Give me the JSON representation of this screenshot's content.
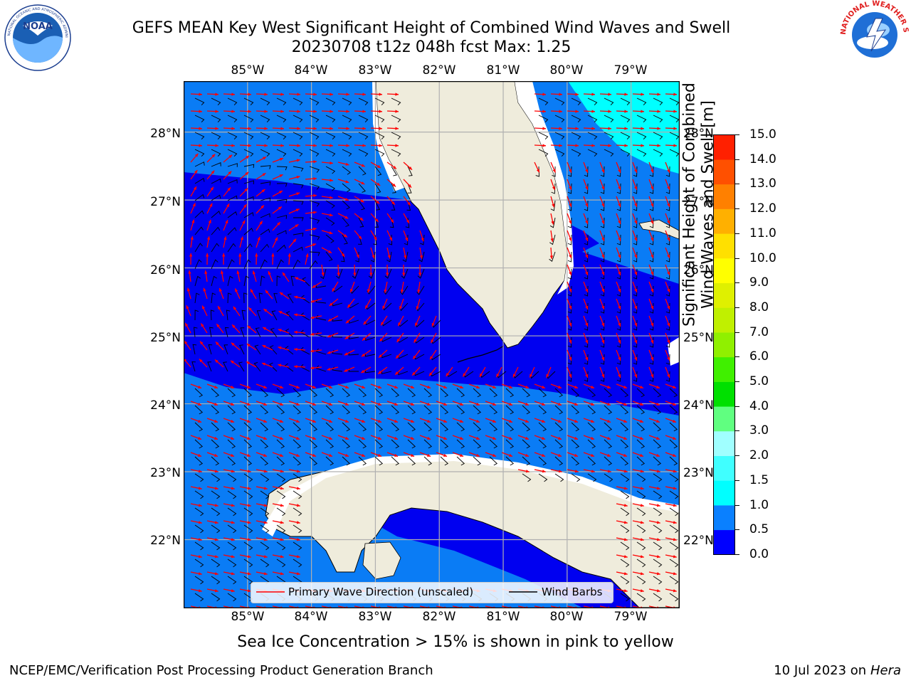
{
  "header": {
    "title_line1": "GEFS MEAN Key West Significant Height of Combined Wind Waves and Swell",
    "title_line2": "20230708 t12z 048h fcst   Max: 1.25"
  },
  "logos": {
    "left": {
      "name": "noaa-logo",
      "text": "NOAA",
      "ring_text": "NATIONAL OCEANIC AND ATMOSPHERIC ADMINISTRATION · U.S. DEPARTMENT OF COMMERCE"
    },
    "right": {
      "name": "nws-logo",
      "ring_text": "NATIONAL WEATHER SERVICE"
    }
  },
  "map": {
    "region": "Key West",
    "lon_range": [
      -86.0,
      -78.25
    ],
    "lat_range": [
      21.0,
      28.75
    ],
    "lon_ticks": [
      "85°W",
      "84°W",
      "83°W",
      "82°W",
      "81°W",
      "80°W",
      "79°W"
    ],
    "lat_ticks": [
      "22°N",
      "23°N",
      "24°N",
      "25°N",
      "26°N",
      "27°N",
      "28°N"
    ],
    "grid": true,
    "colors": {
      "land": "#efecdc",
      "coast": "#ffffff",
      "band_0_0p5": "#0000f0",
      "band_0p5_1p0": "#0a7cf5",
      "band_1p0_1p5": "#00ffff",
      "wave_arrow": "#ff0000",
      "wind_barb": "#000000",
      "gridline": "#b0b0b0"
    }
  },
  "legend": {
    "wave_direction_label": "Primary Wave Direction (unscaled)",
    "wind_barbs_label": "Wind Barbs"
  },
  "colorbar": {
    "label_line1": "Significant Height of Combined",
    "label_line2": "Wind Waves and Swell [m]",
    "ticks": [
      "15.0",
      "14.0",
      "13.0",
      "12.0",
      "11.0",
      "10.0",
      "9.0",
      "8.0",
      "7.0",
      "6.0",
      "5.0",
      "4.0",
      "3.0",
      "2.0",
      "1.5",
      "1.0",
      "0.5",
      "0.0"
    ],
    "colors": [
      "#0000ff",
      "#0a80ff",
      "#00ffff",
      "#40ffff",
      "#a0ffff",
      "#60ff80",
      "#00e000",
      "#40f000",
      "#90f000",
      "#c0f000",
      "#dff000",
      "#ffff00",
      "#ffe000",
      "#ffb000",
      "#ff8000",
      "#ff5000",
      "#ff2000"
    ]
  },
  "note": "Sea Ice Concentration > 15% is shown in pink to yellow",
  "footer": {
    "left": "NCEP/EMC/Verification Post Processing Product Generation Branch",
    "right_prefix": "10 Jul 2023 on ",
    "right_host": "Hera"
  }
}
